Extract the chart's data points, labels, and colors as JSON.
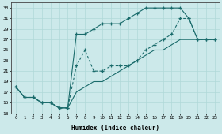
{
  "xlabel": "Humidex (Indice chaleur)",
  "bg_color": "#cce9ea",
  "grid_color": "#b0d8d8",
  "line_color": "#1a6b6b",
  "xlim": [
    -0.5,
    23.5
  ],
  "ylim": [
    13,
    34
  ],
  "xticks": [
    0,
    1,
    2,
    3,
    4,
    5,
    6,
    7,
    8,
    9,
    10,
    11,
    12,
    13,
    14,
    15,
    16,
    17,
    18,
    19,
    20,
    21,
    22,
    23
  ],
  "yticks": [
    13,
    15,
    17,
    19,
    21,
    23,
    25,
    27,
    29,
    31,
    33
  ],
  "curve_top_x": [
    0,
    1,
    2,
    3,
    4,
    5,
    6,
    7,
    8,
    9,
    10,
    11,
    12,
    13,
    14,
    15,
    16,
    17,
    18,
    19,
    20,
    21,
    22,
    23
  ],
  "curve_top_y": [
    18,
    16,
    16,
    15,
    15,
    14,
    14,
    28,
    28,
    29,
    30,
    30,
    30,
    31,
    32,
    33,
    33,
    33,
    33,
    33,
    31,
    27,
    27,
    27
  ],
  "curve_mid_x": [
    0,
    1,
    2,
    3,
    4,
    5,
    6,
    7,
    8,
    9,
    10,
    11,
    12,
    13,
    14,
    15,
    16,
    17,
    18,
    19,
    20,
    21,
    22,
    23
  ],
  "curve_mid_y": [
    18,
    16,
    16,
    15,
    15,
    14,
    14,
    22,
    25,
    21,
    21,
    22,
    22,
    22,
    23,
    25,
    26,
    27,
    28,
    31,
    31,
    27,
    27,
    27
  ],
  "curve_bot_x": [
    0,
    1,
    2,
    3,
    4,
    5,
    6,
    7,
    8,
    9,
    10,
    11,
    12,
    13,
    14,
    15,
    16,
    17,
    18,
    19,
    20,
    21,
    22,
    23
  ],
  "curve_bot_y": [
    18,
    16,
    16,
    15,
    15,
    14,
    14,
    17,
    18,
    19,
    19,
    20,
    21,
    22,
    23,
    24,
    25,
    25,
    26,
    27,
    27,
    27,
    27,
    27
  ]
}
